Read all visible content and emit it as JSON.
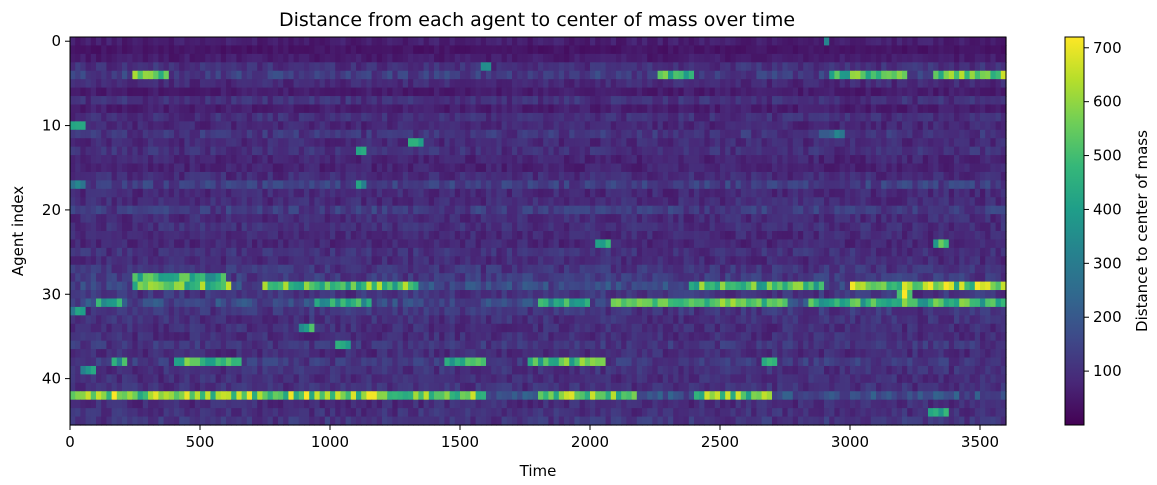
{
  "chart_data": {
    "type": "heatmap",
    "title": "Distance from each agent to center of mass over time",
    "xlabel": "Time",
    "ylabel": "Agent index",
    "xlim": [
      0,
      3600
    ],
    "ylim": [
      46,
      0
    ],
    "n_agents": 46,
    "x_ticks": [
      0,
      500,
      1000,
      1500,
      2000,
      2500,
      3000,
      3500
    ],
    "y_ticks": [
      0,
      10,
      20,
      30,
      40
    ],
    "colorbar": {
      "label": "Distance to center of mass",
      "range": [
        0,
        720
      ],
      "ticks": [
        100,
        200,
        300,
        400,
        500,
        600,
        700
      ],
      "colormap": [
        "#440154",
        "#482878",
        "#3e4989",
        "#31688e",
        "#26828e",
        "#1f9e89",
        "#35b779",
        "#6ece58",
        "#b5de2b",
        "#fde725"
      ]
    },
    "baseline_distance": [
      60,
      40,
      55,
      100,
      130,
      85,
      55,
      100,
      60,
      95,
      80,
      110,
      85,
      100,
      75,
      70,
      90,
      130,
      85,
      90,
      125,
      90,
      95,
      85,
      80,
      100,
      90,
      110,
      120,
      160,
      110,
      160,
      110,
      100,
      95,
      95,
      110,
      90,
      120,
      100,
      95,
      100,
      170,
      90,
      100,
      110
    ],
    "high_distance_episodes": [
      {
        "agent": 0,
        "start": 2900,
        "end": 2920,
        "value": 400
      },
      {
        "agent": 3,
        "start": 1580,
        "end": 1610,
        "value": 480
      },
      {
        "agent": 4,
        "start": 240,
        "end": 380,
        "value": 550
      },
      {
        "agent": 4,
        "start": 2270,
        "end": 2400,
        "value": 500
      },
      {
        "agent": 4,
        "start": 2920,
        "end": 3210,
        "value": 520
      },
      {
        "agent": 4,
        "start": 3330,
        "end": 3600,
        "value": 560
      },
      {
        "agent": 10,
        "start": 0,
        "end": 60,
        "value": 360
      },
      {
        "agent": 11,
        "start": 2880,
        "end": 2970,
        "value": 280
      },
      {
        "agent": 12,
        "start": 1310,
        "end": 1360,
        "value": 480
      },
      {
        "agent": 13,
        "start": 1110,
        "end": 1140,
        "value": 420
      },
      {
        "agent": 17,
        "start": 0,
        "end": 60,
        "value": 360
      },
      {
        "agent": 17,
        "start": 1110,
        "end": 1140,
        "value": 400
      },
      {
        "agent": 24,
        "start": 2020,
        "end": 2080,
        "value": 420
      },
      {
        "agent": 24,
        "start": 3320,
        "end": 3370,
        "value": 520
      },
      {
        "agent": 28,
        "start": 230,
        "end": 600,
        "value": 480
      },
      {
        "agent": 29,
        "start": 230,
        "end": 620,
        "value": 560
      },
      {
        "agent": 29,
        "start": 740,
        "end": 1340,
        "value": 540
      },
      {
        "agent": 29,
        "start": 2380,
        "end": 2900,
        "value": 520
      },
      {
        "agent": 29,
        "start": 3000,
        "end": 3600,
        "value": 600
      },
      {
        "agent": 30,
        "start": 3180,
        "end": 3240,
        "value": 650
      },
      {
        "agent": 31,
        "start": 100,
        "end": 190,
        "value": 420
      },
      {
        "agent": 31,
        "start": 950,
        "end": 1160,
        "value": 440
      },
      {
        "agent": 31,
        "start": 1800,
        "end": 2000,
        "value": 460
      },
      {
        "agent": 31,
        "start": 2090,
        "end": 2750,
        "value": 540
      },
      {
        "agent": 31,
        "start": 2850,
        "end": 3600,
        "value": 500
      },
      {
        "agent": 32,
        "start": 0,
        "end": 60,
        "value": 360
      },
      {
        "agent": 34,
        "start": 890,
        "end": 940,
        "value": 440
      },
      {
        "agent": 36,
        "start": 1030,
        "end": 1070,
        "value": 420
      },
      {
        "agent": 38,
        "start": 160,
        "end": 220,
        "value": 430
      },
      {
        "agent": 38,
        "start": 400,
        "end": 650,
        "value": 520
      },
      {
        "agent": 38,
        "start": 1440,
        "end": 1600,
        "value": 500
      },
      {
        "agent": 38,
        "start": 1770,
        "end": 2060,
        "value": 520
      },
      {
        "agent": 38,
        "start": 2660,
        "end": 2710,
        "value": 460
      },
      {
        "agent": 39,
        "start": 40,
        "end": 100,
        "value": 380
      },
      {
        "agent": 42,
        "start": 0,
        "end": 1600,
        "value": 600
      },
      {
        "agent": 42,
        "start": 1800,
        "end": 2180,
        "value": 580
      },
      {
        "agent": 42,
        "start": 2400,
        "end": 2700,
        "value": 560
      },
      {
        "agent": 44,
        "start": 3300,
        "end": 3370,
        "value": 440
      }
    ]
  }
}
